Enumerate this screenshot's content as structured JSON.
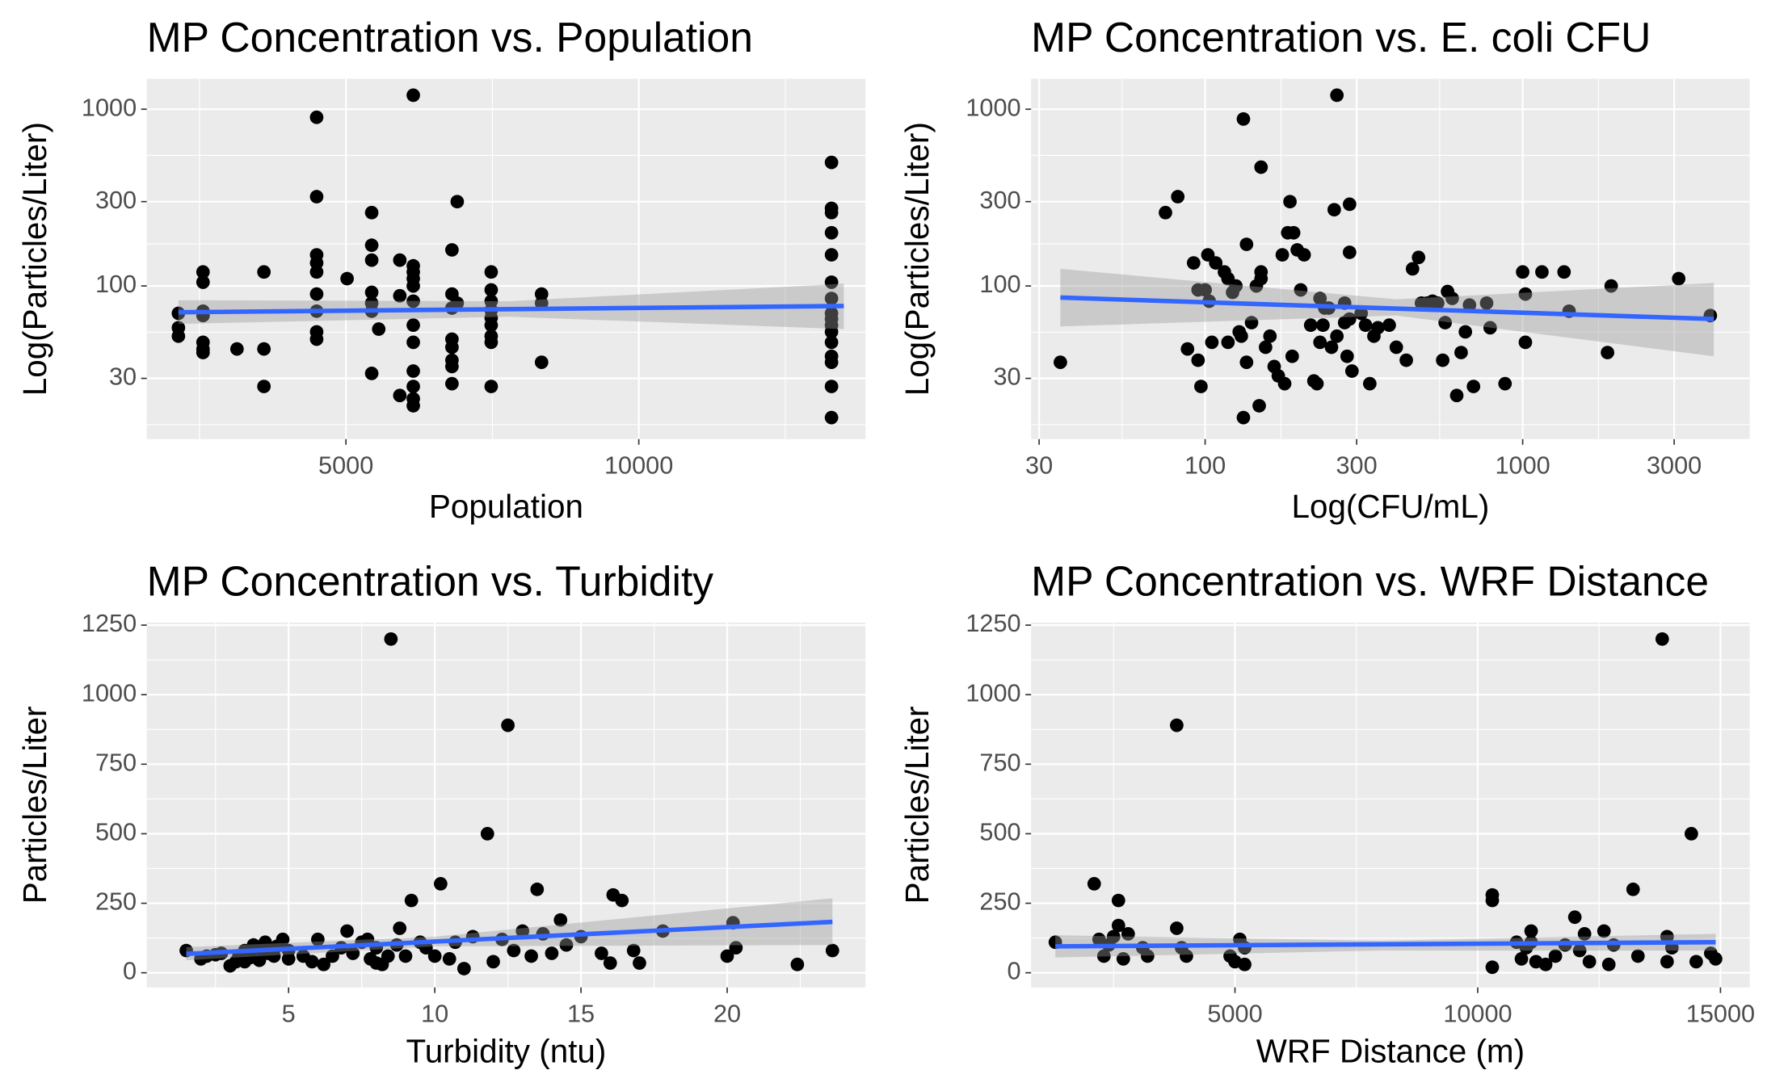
{
  "chart_data": [
    {
      "type": "scatter",
      "title": "MP Concentration vs. Population",
      "x_label": "Population",
      "y_label": "Log(Particles/Liter)",
      "xlog": false,
      "ylog": true,
      "xlim": [
        1600,
        13870
      ],
      "ylim": [
        13.6,
        1486
      ],
      "xticks": [
        5000,
        10000
      ],
      "yticks": [
        30,
        100,
        300,
        1000
      ],
      "grid": true,
      "color": "#000000",
      "x": [
        2140,
        2140,
        2140,
        2560,
        2560,
        2560,
        2560,
        2560,
        2560,
        2560,
        3140,
        3600,
        3600,
        3600,
        4500,
        4500,
        4500,
        4500,
        4500,
        4500,
        4500,
        4500,
        4500,
        5020,
        5440,
        5440,
        5440,
        5440,
        5440,
        5440,
        5440,
        5560,
        5920,
        5920,
        5920,
        6150,
        6150,
        6150,
        6150,
        6150,
        6150,
        6150,
        6150,
        6150,
        6150,
        6150,
        6150,
        6810,
        6810,
        6810,
        6810,
        6810,
        6810,
        6810,
        6810,
        6900,
        6900,
        7480,
        7480,
        7480,
        7480,
        7480,
        7480,
        7480,
        7480,
        7480,
        8340,
        8340,
        8340,
        13290,
        13290,
        13290,
        13290,
        13290,
        13290,
        13290,
        13290,
        13290,
        13290,
        13290,
        13290,
        13290,
        13290,
        13290,
        13290
      ],
      "values": [
        70,
        58,
        52,
        120,
        105,
        72,
        68,
        48,
        44,
        42,
        44,
        120,
        44,
        27,
        900,
        320,
        150,
        135,
        120,
        90,
        72,
        55,
        50,
        110,
        260,
        170,
        140,
        92,
        80,
        72,
        32,
        57,
        140,
        88,
        24,
        1200,
        130,
        120,
        110,
        100,
        82,
        60,
        48,
        33,
        27,
        23,
        21,
        160,
        90,
        75,
        50,
        45,
        38,
        35,
        28,
        300,
        80,
        120,
        95,
        82,
        73,
        66,
        60,
        52,
        48,
        27,
        90,
        80,
        37,
        500,
        275,
        260,
        200,
        150,
        105,
        85,
        70,
        65,
        60,
        55,
        48,
        40,
        37,
        27,
        18
      ],
      "fit": {
        "x": [
          2140,
          13500
        ],
        "values": [
          71,
          77
        ],
        "color": "#3366ff"
      },
      "ci": {
        "x": [
          2140,
          7800,
          13500
        ],
        "lower": [
          61,
          67,
          57
        ],
        "upper": [
          83,
          82,
          103
        ],
        "color": "#999999"
      }
    },
    {
      "type": "scatter",
      "title": "MP Concentration vs. E. coli CFU",
      "x_label": "Log(CFU/mL)",
      "y_label": "Log(Particles/Liter)",
      "xlog": true,
      "ylog": true,
      "xlim": [
        28.3,
        5190
      ],
      "ylim": [
        13.6,
        1486
      ],
      "xticks": [
        30,
        100,
        300,
        1000,
        3000
      ],
      "yticks": [
        30,
        100,
        300,
        1000
      ],
      "grid": true,
      "color": "#000000",
      "x": [
        35,
        75,
        82,
        88,
        92,
        95,
        95,
        97,
        100,
        102,
        103,
        105,
        108,
        115,
        118,
        118,
        122,
        125,
        128,
        130,
        132,
        132,
        135,
        135,
        140,
        145,
        148,
        150,
        150,
        150,
        155,
        160,
        165,
        170,
        175,
        178,
        182,
        185,
        188,
        190,
        195,
        200,
        205,
        215,
        220,
        225,
        230,
        230,
        235,
        238,
        245,
        250,
        255,
        260,
        260,
        275,
        275,
        280,
        285,
        285,
        285,
        290,
        310,
        320,
        330,
        340,
        350,
        380,
        400,
        430,
        450,
        470,
        480,
        500,
        520,
        540,
        560,
        570,
        580,
        600,
        620,
        640,
        660,
        680,
        700,
        770,
        790,
        880,
        1000,
        1020,
        1020,
        1150,
        1350,
        1400,
        1850,
        1900,
        3100,
        3900
      ],
      "values": [
        37,
        260,
        320,
        44,
        135,
        38,
        95,
        27,
        95,
        150,
        82,
        48,
        135,
        120,
        110,
        48,
        92,
        100,
        55,
        52,
        18,
        880,
        172,
        37,
        62,
        100,
        21,
        470,
        110,
        120,
        45,
        52,
        35,
        31,
        150,
        28,
        200,
        300,
        40,
        200,
        160,
        95,
        150,
        60,
        29,
        28,
        48,
        85,
        60,
        75,
        75,
        45,
        270,
        1200,
        52,
        62,
        80,
        40,
        290,
        155,
        65,
        33,
        70,
        60,
        28,
        52,
        58,
        60,
        45,
        38,
        125,
        145,
        80,
        80,
        82,
        80,
        38,
        62,
        93,
        85,
        24,
        42,
        55,
        78,
        27,
        80,
        58,
        28,
        120,
        48,
        90,
        120,
        120,
        72,
        42,
        100,
        110,
        68
      ],
      "fit": {
        "x": [
          35,
          4000
        ],
        "values": [
          86,
          65
        ],
        "color": "#3366ff"
      },
      "ci": {
        "x": [
          35,
          400,
          4000
        ],
        "lower": [
          59,
          68,
          40
        ],
        "upper": [
          125,
          84,
          104
        ],
        "color": "#999999"
      }
    },
    {
      "type": "scatter",
      "title": "MP Concentration vs. Turbidity",
      "x_label": "Turbidity (ntu)",
      "y_label": "Particles/Liter",
      "xlog": false,
      "ylog": false,
      "xlim": [
        0.15,
        24.73
      ],
      "ylim": [
        -52.6,
        1259
      ],
      "xticks": [
        5,
        10,
        15,
        20
      ],
      "yticks": [
        0,
        250,
        500,
        750,
        1000,
        1250
      ],
      "grid": true,
      "color": "#000000",
      "x": [
        1.5,
        2.0,
        2.2,
        2.5,
        2.7,
        3.0,
        3.2,
        3.3,
        3.5,
        3.5,
        3.7,
        3.8,
        4.0,
        4.0,
        4.2,
        4.3,
        4.5,
        4.6,
        4.8,
        5.0,
        5.0,
        5.5,
        5.8,
        6.0,
        6.2,
        6.5,
        6.8,
        7.0,
        7.2,
        7.5,
        7.7,
        7.8,
        8.0,
        8.0,
        8.2,
        8.4,
        8.5,
        8.7,
        8.8,
        9.0,
        9.2,
        9.5,
        9.7,
        10.0,
        10.2,
        10.5,
        10.7,
        11.0,
        11.3,
        11.8,
        12.0,
        12.3,
        12.5,
        12.7,
        13.0,
        13.3,
        13.5,
        13.7,
        14.0,
        14.3,
        14.5,
        15.0,
        15.7,
        16.0,
        16.1,
        16.4,
        16.8,
        17.0,
        17.8,
        20.0,
        20.2,
        20.3,
        22.4,
        23.6
      ],
      "values": [
        80,
        50,
        60,
        65,
        70,
        25,
        40,
        60,
        40,
        80,
        55,
        100,
        45,
        90,
        110,
        70,
        60,
        95,
        120,
        50,
        80,
        60,
        40,
        120,
        30,
        60,
        90,
        150,
        70,
        110,
        120,
        50,
        35,
        90,
        30,
        60,
        1200,
        100,
        160,
        60,
        260,
        110,
        90,
        60,
        320,
        50,
        110,
        15,
        130,
        500,
        40,
        120,
        890,
        80,
        150,
        60,
        300,
        140,
        70,
        190,
        100,
        130,
        70,
        35,
        280,
        260,
        80,
        35,
        150,
        60,
        180,
        90,
        30,
        80
      ],
      "fit": {
        "x": [
          1.5,
          23.6
        ],
        "values": [
          68,
          183
        ],
        "color": "#3366ff"
      },
      "ci": {
        "x": [
          1.5,
          10,
          23.6
        ],
        "lower": [
          45,
          95,
          100
        ],
        "upper": [
          92,
          130,
          268
        ],
        "color": "#999999"
      }
    },
    {
      "type": "scatter",
      "title": "MP Concentration vs. WRF Distance",
      "x_label": "WRF Distance (m)",
      "y_label": "Particles/Liter",
      "xlog": false,
      "ylog": false,
      "xlim": [
        800,
        15603
      ],
      "ylim": [
        -52.6,
        1259
      ],
      "xticks": [
        5000,
        10000,
        15000
      ],
      "yticks": [
        0,
        250,
        500,
        750,
        1000,
        1250
      ],
      "grid": true,
      "color": "#000000",
      "x": [
        1300,
        2100,
        2200,
        2300,
        2400,
        2500,
        2600,
        2600,
        2700,
        2800,
        3100,
        3200,
        3800,
        3800,
        3900,
        4000,
        4900,
        5000,
        5100,
        5200,
        5200,
        10300,
        10300,
        10300,
        10800,
        10900,
        11000,
        11100,
        11200,
        11400,
        11600,
        11800,
        12000,
        12100,
        12200,
        12300,
        12600,
        12800,
        13200,
        13300,
        13800,
        13900,
        13900,
        14000,
        14400,
        14500,
        14800,
        14900,
        12700,
        11100
      ],
      "values": [
        110,
        320,
        120,
        60,
        100,
        130,
        260,
        170,
        50,
        140,
        90,
        60,
        890,
        160,
        90,
        60,
        60,
        40,
        120,
        90,
        30,
        280,
        260,
        20,
        110,
        50,
        90,
        150,
        40,
        30,
        60,
        100,
        200,
        80,
        140,
        40,
        150,
        100,
        300,
        60,
        1200,
        130,
        40,
        90,
        500,
        40,
        70,
        50,
        30,
        110
      ],
      "fit": {
        "x": [
          1300,
          14900
        ],
        "values": [
          95,
          110
        ],
        "color": "#3366ff"
      },
      "ci": {
        "x": [
          1300,
          8000,
          14900
        ],
        "lower": [
          55,
          80,
          80
        ],
        "upper": [
          135,
          115,
          140
        ],
        "color": "#999999"
      }
    }
  ]
}
